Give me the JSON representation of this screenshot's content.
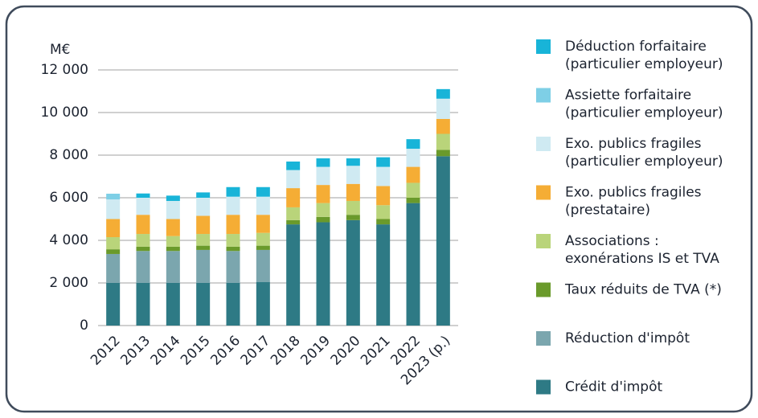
{
  "chart_data": {
    "type": "stacked_bar",
    "y_axis_label": "M€",
    "categories": [
      "2012",
      "2013",
      "2014",
      "2015",
      "2016",
      "2017",
      "2018",
      "2019",
      "2020",
      "2021",
      "2022",
      "2023 (p.)"
    ],
    "ylim": [
      0,
      12000
    ],
    "yticks": [
      0,
      {
        "value": 2000,
        "label": "2 000"
      },
      {
        "value": 4000,
        "label": "4 000"
      },
      {
        "value": 6000,
        "label": "6 000"
      },
      {
        "value": 8000,
        "label": "8 000"
      },
      {
        "value": 10000,
        "label": "10 000"
      },
      {
        "value": 12000,
        "label": "12 000"
      }
    ],
    "grid": true,
    "legend": "right",
    "series": [
      {
        "name": "Crédit d'impôt",
        "color": "#2e7a85",
        "values": [
          2000,
          2000,
          2000,
          2000,
          2000,
          2050,
          4750,
          4850,
          4950,
          4750,
          5750,
          7950
        ]
      },
      {
        "name": "Réduction d'impôt",
        "color": "#7ba6ae",
        "values": [
          1360,
          1500,
          1500,
          1550,
          1500,
          1500,
          0,
          0,
          0,
          0,
          0,
          0
        ]
      },
      {
        "name": "Taux réduits de TVA (*)",
        "color": "#6a9a2b",
        "values": [
          220,
          200,
          200,
          200,
          200,
          200,
          200,
          250,
          250,
          250,
          250,
          300
        ]
      },
      {
        "name": "Associations :\nexonérations IS et TVA",
        "color": "#b9d47a",
        "values": [
          570,
          600,
          500,
          550,
          600,
          600,
          600,
          650,
          650,
          650,
          700,
          750
        ]
      },
      {
        "name": "Exo. publics fragiles\n(prestataire)",
        "color": "#f5ad35",
        "values": [
          850,
          900,
          800,
          850,
          900,
          850,
          900,
          850,
          800,
          900,
          750,
          700
        ]
      },
      {
        "name": "Exo. publics fragiles\n(particulier employeur)",
        "color": "#cfeaf2",
        "values": [
          920,
          800,
          850,
          850,
          850,
          850,
          850,
          850,
          850,
          900,
          850,
          950
        ]
      },
      {
        "name": "Assiette forfaitaire\n(particulier employeur)",
        "color": "#7ecfe6",
        "values": [
          270,
          0,
          0,
          0,
          0,
          0,
          0,
          0,
          0,
          0,
          0,
          0
        ]
      },
      {
        "name": "Déduction forfaitaire\n(particulier employeur)",
        "color": "#18b4d8",
        "values": [
          0,
          200,
          250,
          250,
          450,
          450,
          400,
          400,
          350,
          450,
          450,
          450
        ]
      }
    ]
  }
}
